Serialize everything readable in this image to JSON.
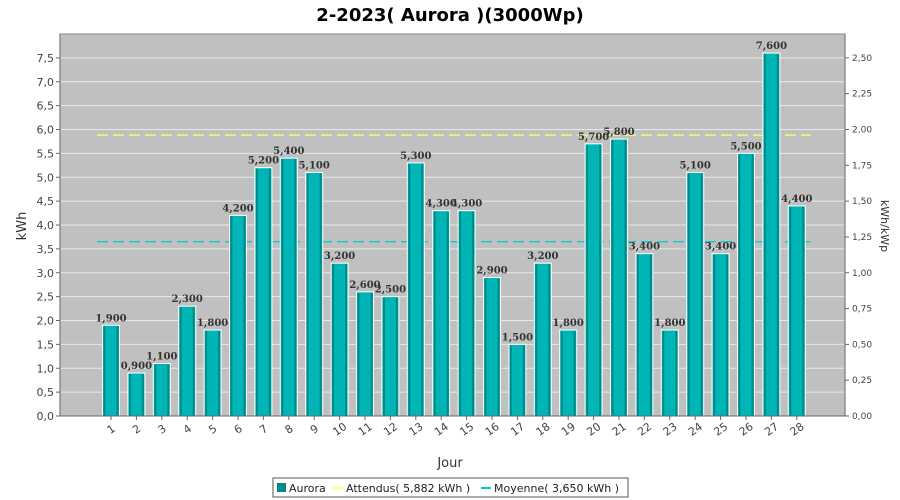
{
  "chart_data": {
    "type": "bar",
    "title": "2-2023( Aurora )(3000Wp)",
    "xlabel": "Jour",
    "ylabel": "kWh",
    "ylabel_right": "kWh/kWp",
    "categories": [
      "1",
      "2",
      "3",
      "4",
      "5",
      "6",
      "7",
      "8",
      "9",
      "10",
      "11",
      "12",
      "13",
      "14",
      "15",
      "16",
      "17",
      "18",
      "19",
      "20",
      "21",
      "22",
      "23",
      "24",
      "25",
      "26",
      "27",
      "28"
    ],
    "series": [
      {
        "name": "Aurora",
        "values": [
          1.9,
          0.9,
          1.1,
          2.3,
          1.8,
          4.2,
          5.2,
          5.4,
          5.1,
          3.2,
          2.6,
          2.5,
          5.3,
          4.3,
          4.3,
          2.9,
          1.5,
          3.2,
          1.8,
          5.7,
          5.8,
          3.4,
          1.8,
          5.1,
          3.4,
          5.5,
          7.6,
          4.4
        ],
        "data_labels": [
          "1,900",
          "0,900",
          "1,100",
          "2,300",
          "1,800",
          "4,200",
          "5,200",
          "5,400",
          "5,100",
          "3,200",
          "2,600",
          "2,500",
          "5,300",
          "4,300",
          "4,300",
          "2,900",
          "1,500",
          "3,200",
          "1,800",
          "5,700",
          "5,800",
          "3,400",
          "1,800",
          "5,100",
          "3,400",
          "5,500",
          "7,600",
          "4,400"
        ]
      }
    ],
    "reference_lines": [
      {
        "name": "Attendus( 5,882 kWh )",
        "value": 5.882,
        "color": "#ffff66"
      },
      {
        "name": "Moyenne( 3,650 kWh )",
        "value": 3.65,
        "color": "#00c8c8"
      }
    ],
    "ylim": [
      0,
      8
    ],
    "yticks": [
      "0,0",
      "0,5",
      "1,0",
      "1,5",
      "2,0",
      "2,5",
      "3,0",
      "3,5",
      "4,0",
      "4,5",
      "5,0",
      "5,5",
      "6,0",
      "6,5",
      "7,0",
      "7,5"
    ],
    "ylim_right": [
      0,
      2.6667
    ],
    "yticks_right": [
      "0,00",
      "0,25",
      "0,50",
      "0,75",
      "1,00",
      "1,25",
      "1,50",
      "1,75",
      "2,00",
      "2,25",
      "2,50"
    ],
    "grid": true,
    "legend_position": "bottom",
    "colors": {
      "bar": "#00b5b5",
      "bar_dark": "#008a8a",
      "plot_bg": "#c0c0c0",
      "grid": "#e8e8e8"
    }
  }
}
